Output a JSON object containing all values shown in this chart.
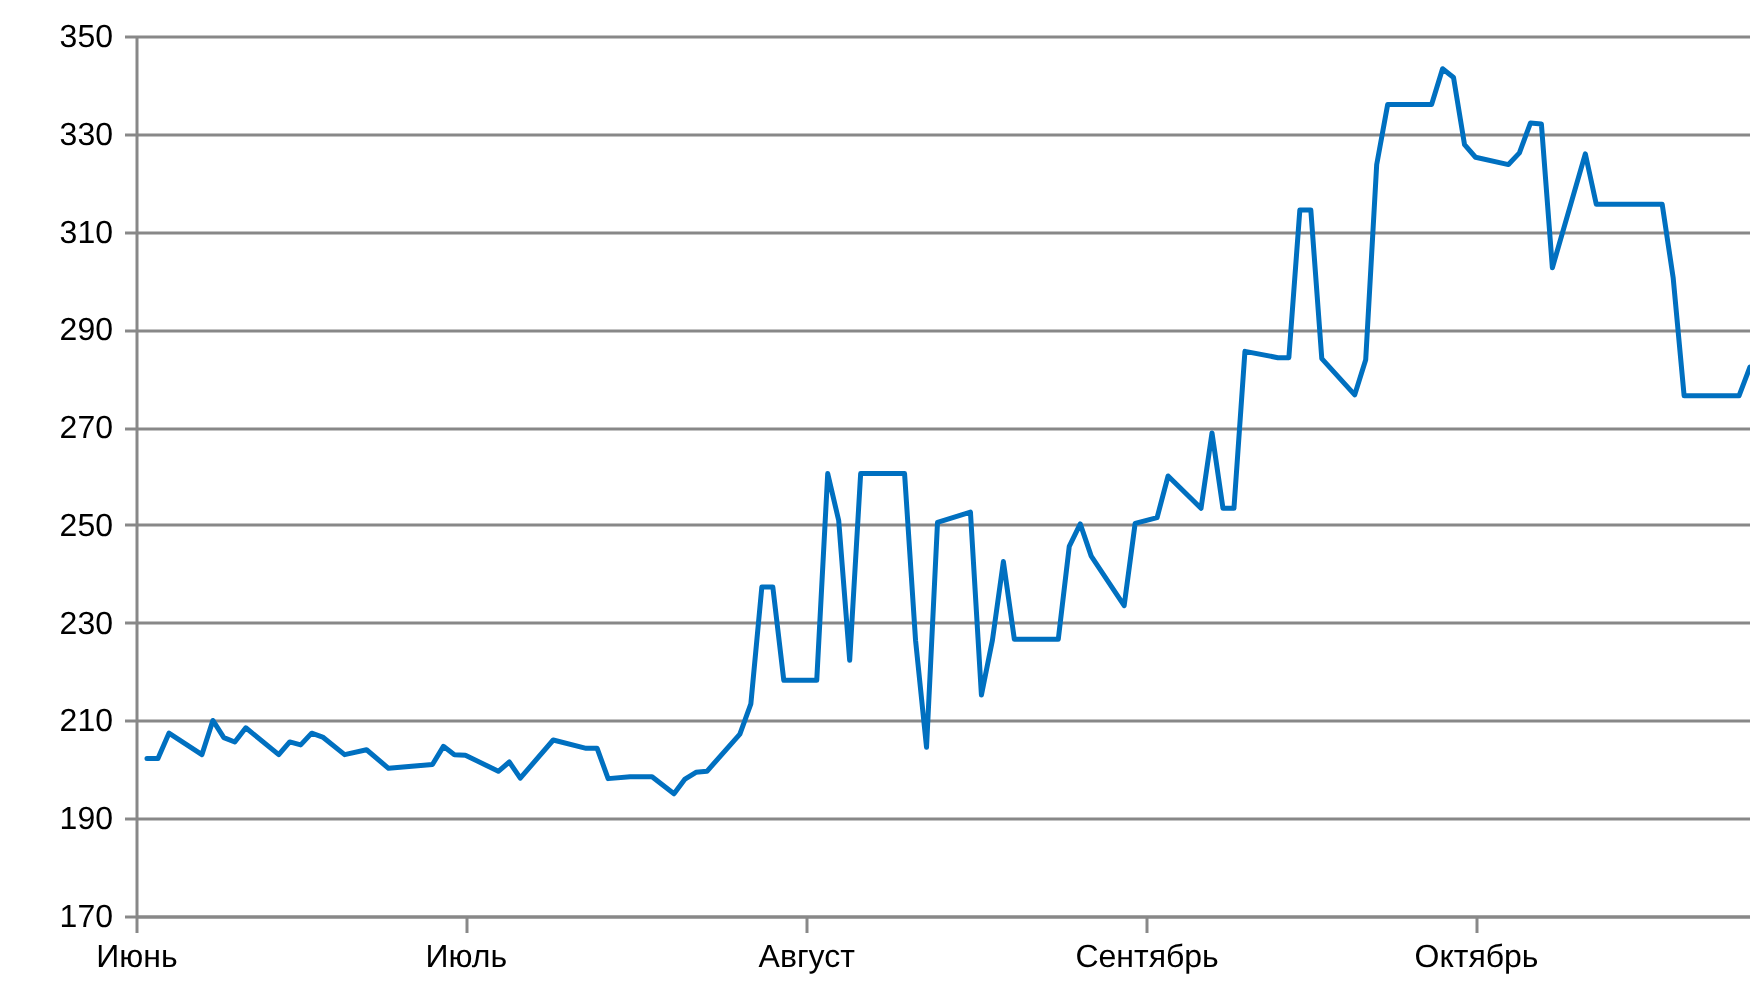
{
  "chart_data": {
    "type": "line",
    "categories": [
      "Июнь",
      null,
      null,
      null,
      null,
      null,
      null,
      null,
      null,
      null,
      null,
      null,
      null,
      null,
      null,
      null,
      null,
      null,
      null,
      null,
      null,
      null,
      null,
      null,
      null,
      null,
      null,
      null,
      null,
      null,
      "Июль",
      null,
      null,
      null,
      null,
      null,
      null,
      null,
      null,
      null,
      null,
      null,
      null,
      null,
      null,
      null,
      null,
      null,
      null,
      null,
      null,
      null,
      null,
      null,
      null,
      null,
      null,
      null,
      null,
      null,
      null,
      "Август",
      null,
      null,
      null,
      null,
      null,
      null,
      null,
      null,
      null,
      null,
      null,
      null,
      null,
      null,
      null,
      null,
      null,
      null,
      null,
      null,
      null,
      null,
      null,
      null,
      null,
      null,
      null,
      null,
      null,
      null,
      "Сентябрь",
      null,
      null,
      null,
      null,
      null,
      null,
      null,
      null,
      null,
      null,
      null,
      null,
      null,
      null,
      null,
      null,
      null,
      null,
      null,
      null,
      null,
      null,
      null,
      null,
      null,
      null,
      null,
      null,
      null,
      "Октябрь",
      null,
      null,
      null,
      null,
      null,
      null,
      null,
      null,
      null,
      null,
      null,
      null,
      null,
      null,
      null,
      null,
      null,
      null,
      null,
      null,
      null,
      null,
      null,
      null,
      null
    ],
    "series": [
      {
        "color": "#0070c0",
        "values": [
          null,
          202.2,
          202.2,
          207.4,
          null,
          null,
          203,
          210,
          206.5,
          205.6,
          208.5,
          null,
          null,
          203,
          205.6,
          205,
          207.4,
          206.6,
          null,
          203,
          null,
          204,
          null,
          200.2,
          null,
          null,
          null,
          201,
          204.7,
          203,
          202.9,
          null,
          null,
          199.6,
          201.5,
          198.2,
          null,
          null,
          206,
          null,
          null,
          204.3,
          204.3,
          198.1,
          null,
          198.5,
          null,
          198.5,
          null,
          195,
          198,
          199.4,
          199.6,
          null,
          null,
          207.2,
          213.4,
          237.3,
          237.3,
          218.2,
          null,
          null,
          218.2,
          260.5,
          250.9,
          222.3,
          260.5,
          null,
          null,
          null,
          260.5,
          226.4,
          204.5,
          250.5,
          null,
          null,
          252.6,
          215.2,
          226.4,
          242.5,
          226.6,
          null,
          null,
          null,
          226.6,
          245.6,
          250.2,
          243.6,
          null,
          null,
          233.5,
          250.3,
          null,
          251.5,
          260,
          null,
          null,
          253.4,
          268.8,
          253.4,
          253.4,
          285.5,
          null,
          null,
          284.2,
          284.2,
          314.4,
          314.4,
          284,
          null,
          null,
          276.6,
          283.8,
          323.7,
          336,
          null,
          null,
          null,
          336,
          343.3,
          341.5,
          327.8,
          325.2,
          null,
          null,
          323.7,
          326.1,
          332.2,
          332,
          302.6,
          null,
          null,
          325.9,
          315.6,
          null,
          null,
          null,
          null,
          null,
          315.6,
          300.6,
          276.4,
          null,
          null,
          null,
          null,
          276.4,
          282.3
        ]
      }
    ],
    "ylim": [
      170,
      350
    ],
    "yticks": [
      170,
      190,
      210,
      230,
      250,
      270,
      290,
      310,
      330,
      350
    ],
    "grid": "y",
    "marker": "none",
    "line_style": "solid"
  }
}
